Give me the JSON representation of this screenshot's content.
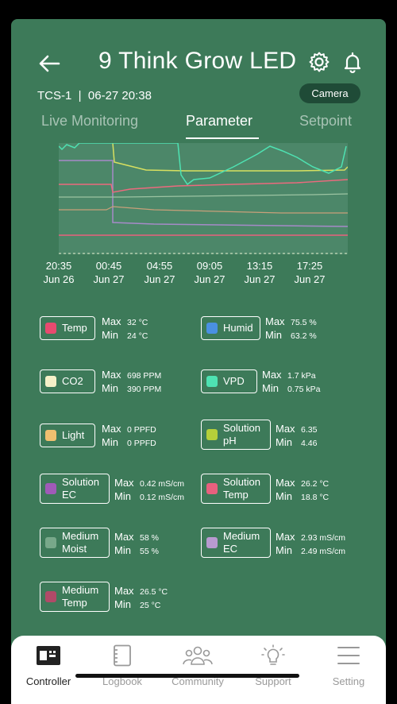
{
  "header": {
    "title": "9 Think Grow LED",
    "back_icon": "arrow-left-icon",
    "settings_icon": "gear-icon",
    "notify_icon": "bell-icon"
  },
  "device": {
    "info": "TCS-1  |  06-27 20:38",
    "camera_label": "Camera"
  },
  "tabs": [
    {
      "label": "Live Monitoring"
    },
    {
      "label": "Parameter"
    },
    {
      "label": "Setpoint"
    }
  ],
  "chart_data": {
    "type": "line",
    "x": [
      "20:35\nJun 26",
      "00:45\nJun 27",
      "04:55\nJun 27",
      "09:05\nJun 27",
      "13:15\nJun 27",
      "17:25\nJun 27"
    ],
    "tick_times": [
      "20:35",
      "00:45",
      "04:55",
      "09:05",
      "13:15",
      "17:25"
    ],
    "tick_dates": [
      "Jun 26",
      "Jun 27",
      "Jun 27",
      "Jun 27",
      "Jun 27",
      "Jun 27"
    ],
    "grid": false
  },
  "legend": [
    {
      "label": "Temp",
      "color": "#e84a6f",
      "max_label": "Max",
      "min_label": "Min",
      "max": "32 °C",
      "min": "24 °C"
    },
    {
      "label": "Humid",
      "color": "#4a90e2",
      "max_label": "Max",
      "min_label": "Min",
      "max": "75.5 %",
      "min": "63.2 %"
    },
    {
      "label": "CO2",
      "color": "#f5f0c8",
      "max_label": "Max",
      "min_label": "Min",
      "max": "698 PPM",
      "min": "390 PPM"
    },
    {
      "label": "VPD",
      "color": "#4ee2b2",
      "max_label": "Max",
      "min_label": "Min",
      "max": "1.7 kPa",
      "min": "0.75 kPa"
    },
    {
      "label": "Light",
      "color": "#f0c070",
      "max_label": "Max",
      "min_label": "Min",
      "max": "0 PPFD",
      "min": "0 PPFD"
    },
    {
      "label": "Solution pH",
      "label1": "Solution",
      "label2": "pH",
      "color": "#b5cf3a",
      "max_label": "Max",
      "min_label": "Min",
      "max": "6.35",
      "min": "4.46"
    },
    {
      "label": "Solution EC",
      "label1": "Solution",
      "label2": "EC",
      "color": "#a05ab8",
      "max_label": "Max",
      "min_label": "Min",
      "max": "0.42 mS/cm",
      "min": "0.12 mS/cm"
    },
    {
      "label": "Solution Temp",
      "label1": "Solution",
      "label2": "Temp",
      "color": "#e8607e",
      "max_label": "Max",
      "min_label": "Min",
      "max": "26.2 °C",
      "min": "18.8 °C"
    },
    {
      "label": "Medium Moist",
      "label1": "Medium",
      "label2": "Moist",
      "color": "#78a88a",
      "max_label": "Max",
      "min_label": "Min",
      "max": "58 %",
      "min": "55 %"
    },
    {
      "label": "Medium EC",
      "label1": "Medium",
      "label2": "EC",
      "color": "#b89ad0",
      "max_label": "Max",
      "min_label": "Min",
      "max": "2.93 mS/cm",
      "min": "2.49 mS/cm"
    },
    {
      "label": "Medium Temp",
      "label1": "Medium",
      "label2": "Temp",
      "color": "#b04a68",
      "max_label": "Max",
      "min_label": "Min",
      "max": "26.5 °C",
      "min": "25 °C"
    }
  ],
  "nav": [
    {
      "label": "Controller",
      "icon": "controller-icon",
      "active": true
    },
    {
      "label": "Logbook",
      "icon": "logbook-icon"
    },
    {
      "label": "Community",
      "icon": "community-icon"
    },
    {
      "label": "Support",
      "icon": "lightbulb-icon"
    },
    {
      "label": "Setting",
      "icon": "menu-icon"
    }
  ]
}
